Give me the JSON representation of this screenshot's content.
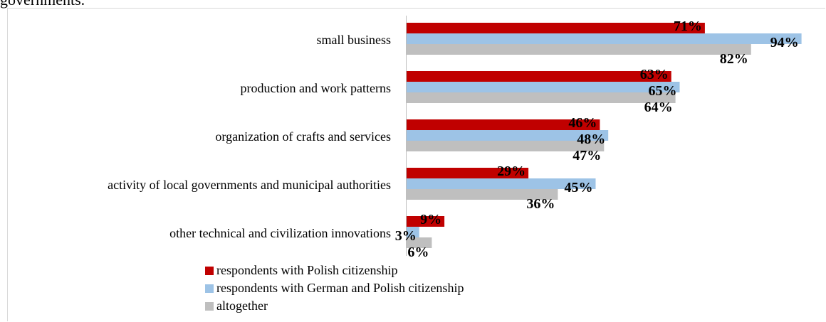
{
  "header_fragment": "governments.",
  "chart_data": {
    "type": "bar",
    "orientation": "horizontal",
    "categories": [
      "small business",
      "production and work patterns",
      "organization of crafts and services",
      "activity of local governments and municipal authorities",
      "other technical and civilization innovations"
    ],
    "series": [
      {
        "name": "respondents with  Polish citizenship",
        "color": "#c00000",
        "values": [
          71,
          63,
          46,
          29,
          9
        ]
      },
      {
        "name": "respondents with German and Polish citizenship",
        "color": "#9dc3e6",
        "values": [
          94,
          65,
          48,
          45,
          3
        ]
      },
      {
        "name": "altogether",
        "color": "#bfbfbf",
        "values": [
          82,
          64,
          47,
          36,
          6
        ]
      }
    ],
    "value_suffix": "%",
    "xlim": [
      0,
      100
    ],
    "grid": false,
    "legend_position": "bottom"
  }
}
